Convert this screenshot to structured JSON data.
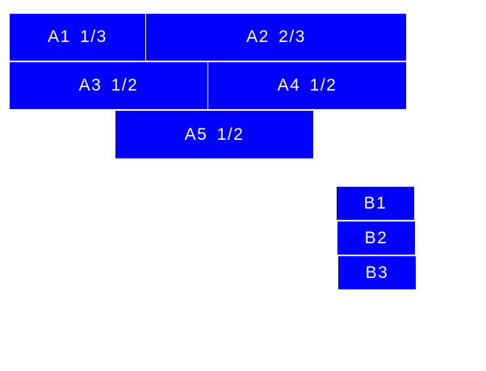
{
  "color": "#0000ff",
  "group_a": [
    {
      "label": "A1  1/3"
    },
    {
      "label": "A2  2/3"
    },
    {
      "label": "A3  1/2"
    },
    {
      "label": "A4  1/2"
    },
    {
      "label": "A5  1/2"
    }
  ],
  "group_b": [
    {
      "label": "B1"
    },
    {
      "label": "B2"
    },
    {
      "label": "B3"
    }
  ]
}
